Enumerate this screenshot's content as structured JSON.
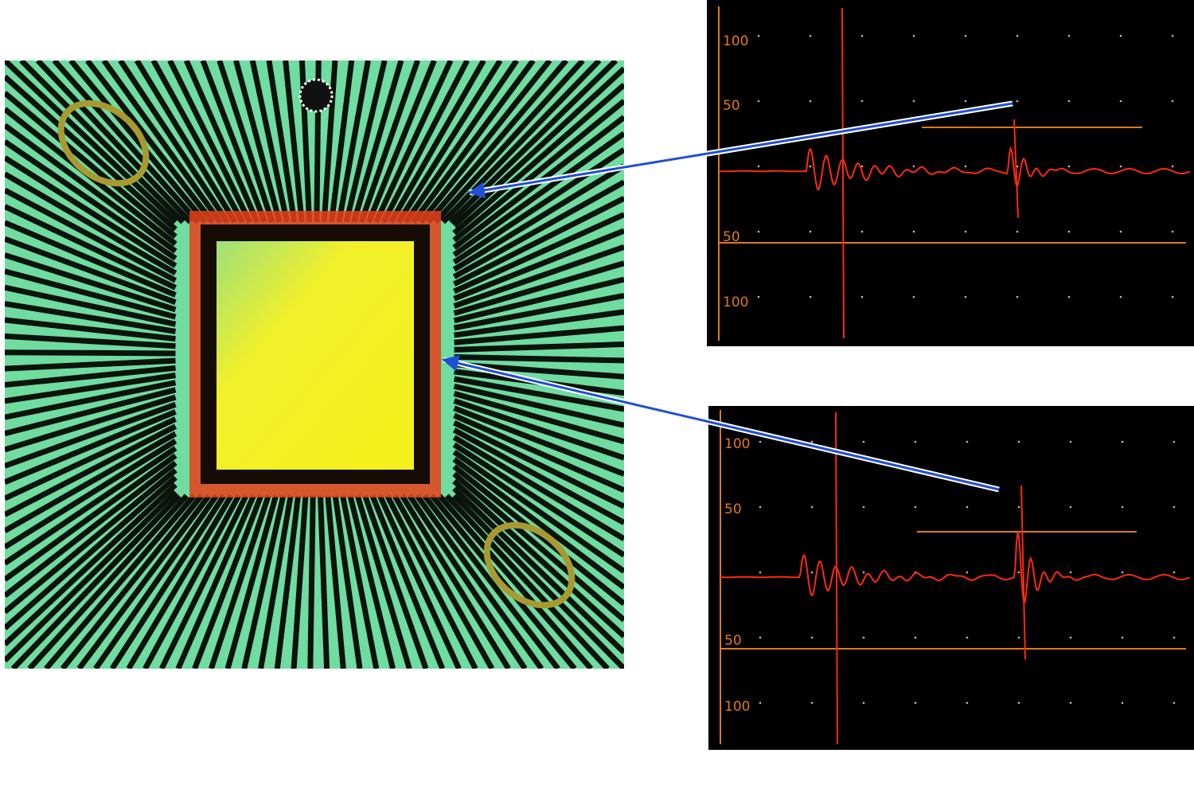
{
  "scans": [
    {
      "axis_labels": [
        "100",
        "50",
        "50",
        "100"
      ]
    },
    {
      "axis_labels": [
        "100",
        "50",
        "50",
        "100"
      ]
    }
  ]
}
